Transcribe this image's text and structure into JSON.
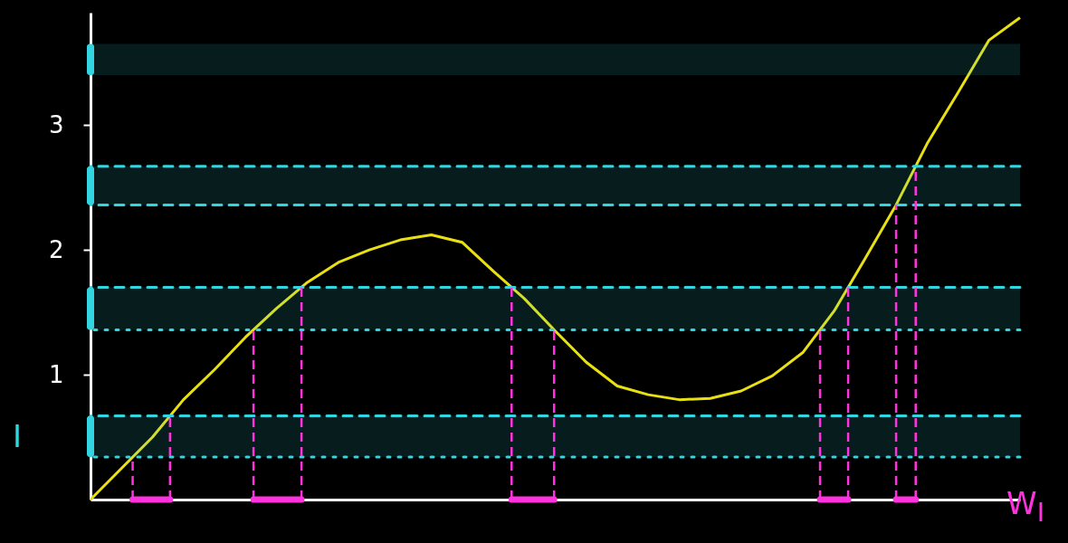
{
  "chart_data": {
    "type": "line",
    "xlabel": "W$_{I}$",
    "ylabel": "I",
    "categories": [
      null,
      null,
      null,
      null,
      null,
      null,
      null,
      null,
      null,
      null,
      null,
      null,
      null,
      null,
      null,
      null,
      null,
      null,
      null,
      null,
      null,
      null,
      null,
      null,
      null,
      null,
      null,
      null,
      null,
      null,
      null
    ],
    "series": [
      {
        "color": "#e8e010",
        "values": [
          0,
          0.25,
          0.5,
          0.8,
          1.04,
          1.3,
          1.53,
          1.74,
          1.9,
          2.0,
          2.08,
          2.12,
          2.06,
          1.83,
          1.61,
          1.35,
          1.1,
          0.91,
          0.84,
          0.8,
          0.81,
          0.87,
          0.99,
          1.18,
          1.51,
          1.93,
          2.36,
          2.85,
          3.26,
          3.68,
          3.86
        ]
      }
    ],
    "ylim": [
      0,
      3.9
    ],
    "yticks": [
      1,
      2,
      3
    ],
    "tick_labels": "y",
    "ref_lines": [
      {
        "axis": "y",
        "value": 0.34,
        "color": "#33d6e0",
        "line_style": "dotted"
      },
      {
        "axis": "y",
        "value": 0.67,
        "color": "#33d6e0",
        "line_style": "dashed"
      },
      {
        "axis": "y",
        "value": 1.36,
        "color": "#33d6e0",
        "line_style": "dotted"
      },
      {
        "axis": "y",
        "value": 1.7,
        "color": "#33d6e0",
        "line_style": "dashed"
      },
      {
        "axis": "y",
        "value": 2.36,
        "color": "#33d6e0",
        "line_style": "dashed"
      },
      {
        "axis": "y",
        "value": 2.67,
        "color": "#33d6e0",
        "line_style": "dashed"
      }
    ],
    "bands": [
      {
        "axis": "y",
        "from": 0.34,
        "to": 0.67,
        "color": "#33d6e0"
      },
      {
        "axis": "y",
        "from": 1.36,
        "to": 1.7,
        "color": "#33d6e0"
      },
      {
        "axis": "y",
        "from": 2.36,
        "to": 2.67,
        "color": "#33d6e0"
      },
      {
        "axis": "y",
        "from": 3.4,
        "to": 3.65,
        "color": "#33d6e0"
      }
    ]
  }
}
